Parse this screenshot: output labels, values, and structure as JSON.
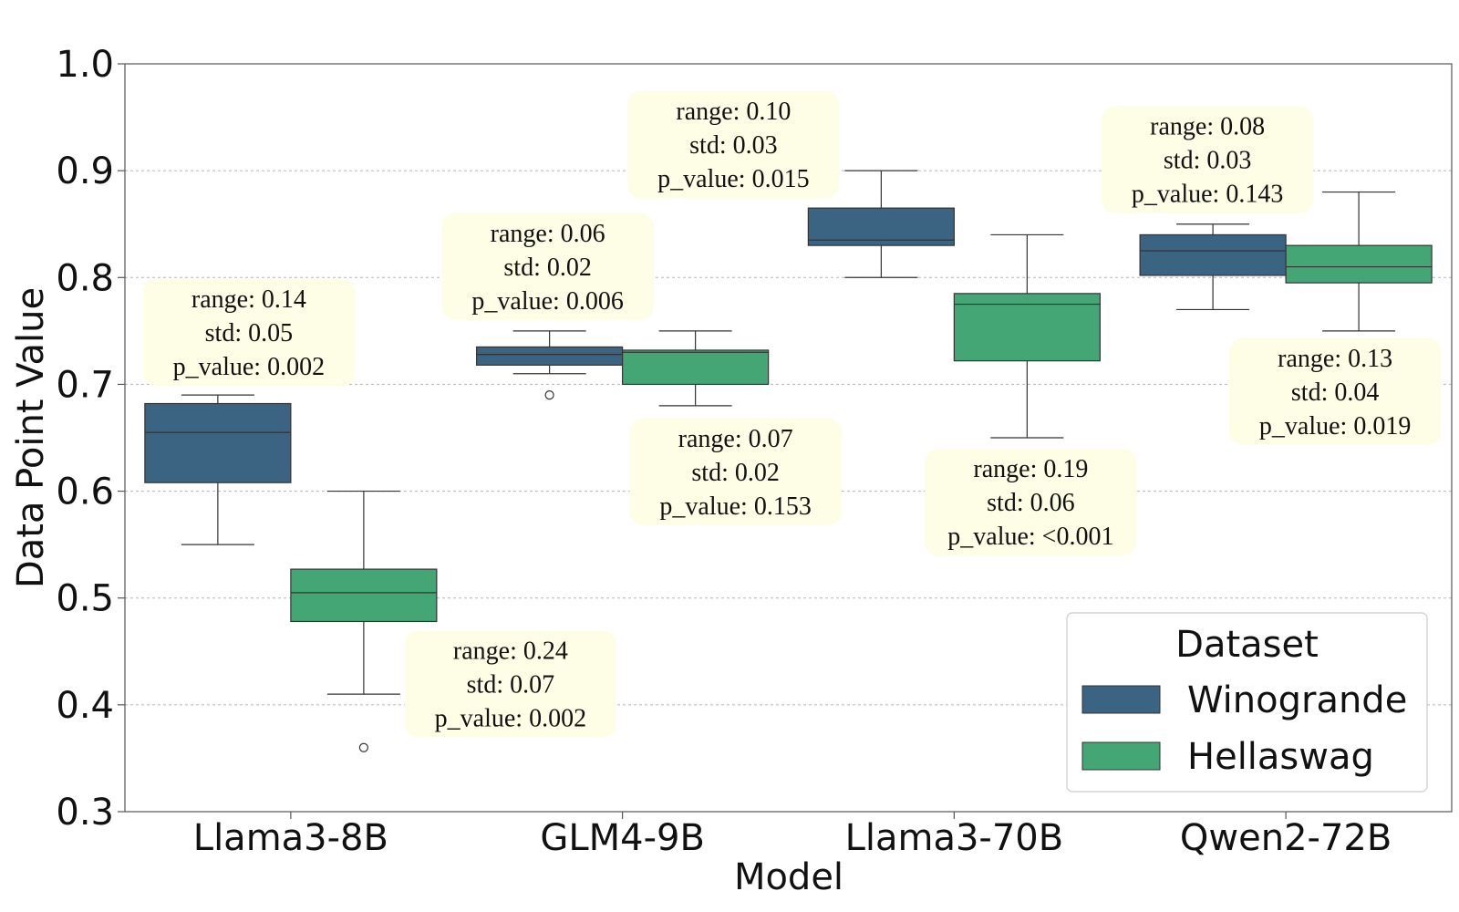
{
  "chart_data": {
    "type": "box",
    "title": "",
    "xlabel": "Model",
    "ylabel": "Data Point Value",
    "ylim": [
      0.3,
      1.0
    ],
    "yticks": [
      "0.3",
      "0.4",
      "0.5",
      "0.6",
      "0.7",
      "0.8",
      "0.9",
      "1.0"
    ],
    "grid": "horizontal dashed",
    "categories": [
      "Llama3-8B",
      "GLM4-9B",
      "Llama3-70B",
      "Qwen2-72B"
    ],
    "legend": {
      "title": "Dataset",
      "placement": "lower-right",
      "entries": [
        {
          "label": "Winogrande",
          "color": "#3b6482"
        },
        {
          "label": "Hellaswag",
          "color": "#44a675"
        }
      ]
    },
    "series": [
      {
        "name": "Winogrande",
        "color": "#3b6482",
        "boxes": [
          {
            "category": "Llama3-8B",
            "whisker_low": 0.55,
            "q1": 0.608,
            "median": 0.655,
            "q3": 0.682,
            "whisker_high": 0.69,
            "outliers": [],
            "annotation": {
              "range": "range: 0.14",
              "std": "std: 0.05",
              "p_value": "p_value: 0.002"
            }
          },
          {
            "category": "GLM4-9B",
            "whisker_low": 0.71,
            "q1": 0.718,
            "median": 0.728,
            "q3": 0.735,
            "whisker_high": 0.75,
            "outliers": [
              0.69
            ],
            "annotation": {
              "range": "range: 0.06",
              "std": "std: 0.02",
              "p_value": "p_value: 0.006"
            }
          },
          {
            "category": "Llama3-70B",
            "whisker_low": 0.8,
            "q1": 0.83,
            "median": 0.835,
            "q3": 0.865,
            "whisker_high": 0.9,
            "outliers": [],
            "annotation": {
              "range": "range: 0.10",
              "std": "std: 0.03",
              "p_value": "p_value: 0.015"
            }
          },
          {
            "category": "Qwen2-72B",
            "whisker_low": 0.77,
            "q1": 0.802,
            "median": 0.825,
            "q3": 0.84,
            "whisker_high": 0.85,
            "outliers": [],
            "annotation": {
              "range": "range: 0.08",
              "std": "std: 0.03",
              "p_value": "p_value: 0.143"
            }
          }
        ]
      },
      {
        "name": "Hellaswag",
        "color": "#44a675",
        "boxes": [
          {
            "category": "Llama3-8B",
            "whisker_low": 0.41,
            "q1": 0.478,
            "median": 0.505,
            "q3": 0.527,
            "whisker_high": 0.6,
            "outliers": [
              0.36
            ],
            "annotation": {
              "range": "range: 0.24",
              "std": "std: 0.07",
              "p_value": "p_value: 0.002"
            }
          },
          {
            "category": "GLM4-9B",
            "whisker_low": 0.68,
            "q1": 0.7,
            "median": 0.73,
            "q3": 0.732,
            "whisker_high": 0.75,
            "outliers": [],
            "annotation": {
              "range": "range: 0.07",
              "std": "std: 0.02",
              "p_value": "p_value: 0.153"
            }
          },
          {
            "category": "Llama3-70B",
            "whisker_low": 0.65,
            "q1": 0.722,
            "median": 0.775,
            "q3": 0.785,
            "whisker_high": 0.84,
            "outliers": [],
            "annotation": {
              "range": "range: 0.19",
              "std": "std: 0.06",
              "p_value": "p_value: <0.001"
            }
          },
          {
            "category": "Qwen2-72B",
            "whisker_low": 0.75,
            "q1": 0.795,
            "median": 0.81,
            "q3": 0.83,
            "whisker_high": 0.88,
            "outliers": [],
            "annotation": {
              "range": "range: 0.13",
              "std": "std: 0.04",
              "p_value": "p_value: 0.019"
            }
          }
        ]
      }
    ]
  }
}
